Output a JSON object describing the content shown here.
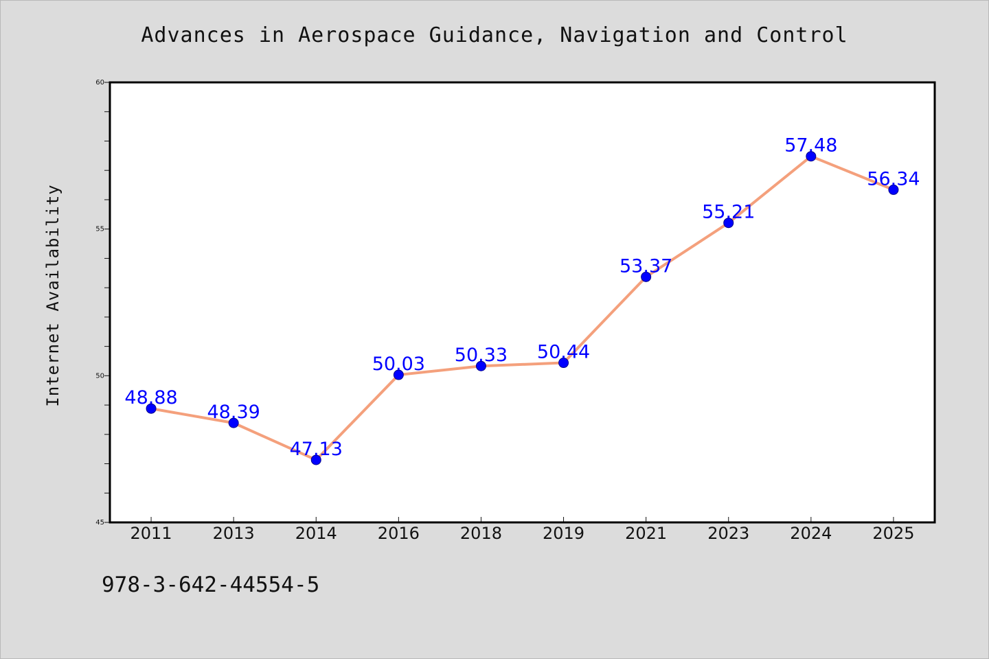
{
  "title": "Advances in Aerospace Guidance, Navigation and Control",
  "footer_text": "978-3-642-44554-5",
  "colors": {
    "background": "#dcdcdc",
    "plot_background": "#ffffff",
    "line": "#f4a07c",
    "marker": "#0000ff",
    "data_label": "#0000ff"
  },
  "chart_data": {
    "type": "line",
    "title": "Advances in Aerospace Guidance, Navigation and Control",
    "xlabel": "",
    "ylabel": "Internet Availability",
    "categories": [
      "2011",
      "2013",
      "2014",
      "2016",
      "2018",
      "2019",
      "2021",
      "2023",
      "2024",
      "2025"
    ],
    "series": [
      {
        "values": [
          48.88,
          48.39,
          47.13,
          50.03,
          50.33,
          50.44,
          53.37,
          55.21,
          57.48,
          56.34
        ],
        "labels": [
          "48.88",
          "48.39",
          "47.13",
          "50.03",
          "50.33",
          "50.44",
          "53.37",
          "55.21",
          "57.48",
          "56.34"
        ]
      }
    ],
    "ylim": [
      45,
      60
    ],
    "y_ticks": [
      "45",
      "50",
      "55",
      "60"
    ],
    "grid": false,
    "legend": "none"
  }
}
